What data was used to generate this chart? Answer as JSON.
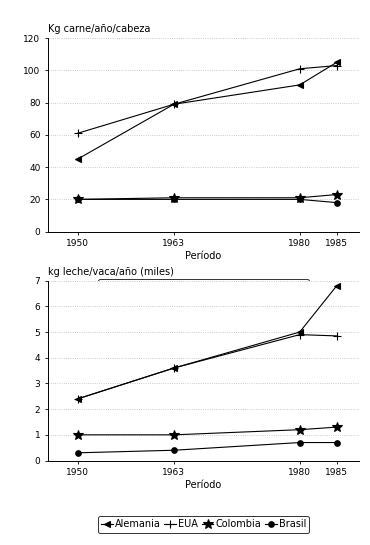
{
  "x": [
    1950,
    1963,
    1980,
    1985
  ],
  "x_labels": [
    "1950",
    "1963",
    "1980",
    "1985"
  ],
  "top": {
    "ylabel": "Kg carne/año/cabeza",
    "xlabel": "Período",
    "ylim": [
      0,
      120
    ],
    "yticks": [
      0,
      20,
      40,
      60,
      80,
      100,
      120
    ],
    "series": {
      "Alemania": [
        45,
        79,
        91,
        105
      ],
      "EUA": [
        61,
        79,
        101,
        103
      ],
      "Colombia": [
        20,
        21,
        21,
        23
      ],
      "Brasil": [
        20,
        20,
        20,
        18
      ]
    }
  },
  "bottom": {
    "ylabel": "kg leche/vaca/año (miles)",
    "xlabel": "Período",
    "ylim": [
      0,
      7
    ],
    "yticks": [
      0,
      1,
      2,
      3,
      4,
      5,
      6,
      7
    ],
    "series": {
      "Alemania": [
        2.4,
        3.6,
        5.0,
        6.8
      ],
      "EUA": [
        2.4,
        3.6,
        4.9,
        4.85
      ],
      "Colombia": [
        1.0,
        1.0,
        1.2,
        1.3
      ],
      "Brasil": [
        0.3,
        0.4,
        0.7,
        0.7
      ]
    }
  },
  "legend_labels": [
    "Alemania",
    "EUA",
    "Colombia",
    "Brasil"
  ],
  "line_color": "#000000",
  "bg_color": "#ffffff",
  "grid_color": "#bbbbbb",
  "font_size_ylabel": 7,
  "font_size_xlabel": 7,
  "font_size_tick": 6.5,
  "font_size_legend": 7,
  "marker_styles": {
    "Alemania": "<",
    "EUA": "+",
    "Colombia": "*",
    "Brasil": "o"
  },
  "marker_sizes": {
    "Alemania": 5,
    "EUA": 6,
    "Colombia": 7,
    "Brasil": 4
  }
}
